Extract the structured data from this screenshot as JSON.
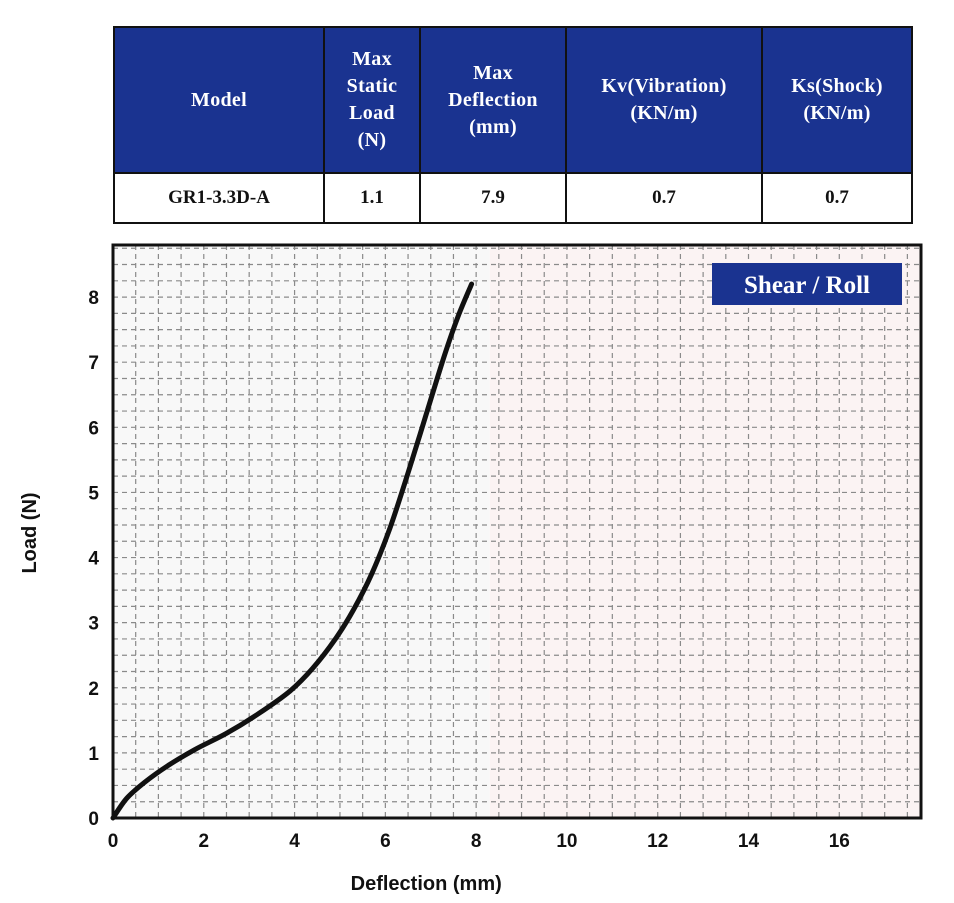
{
  "spec_table": {
    "headers": [
      [
        "Model"
      ],
      [
        "Max",
        "Static",
        "Load",
        "(N)"
      ],
      [
        "Max",
        "Deflection",
        "(mm)"
      ],
      [
        "Kv(Vibration)",
        "(KN/m)"
      ],
      [
        "Ks(Shock)",
        "(KN/m)"
      ]
    ],
    "row": {
      "model": "GR1-3.3D-A",
      "max_static_load": "1.1",
      "max_deflection": "7.9",
      "kv": "0.7",
      "ks": "0.7"
    }
  },
  "chart_data": {
    "type": "line",
    "title": "Shear / Roll",
    "xlabel": "Deflection (mm)",
    "ylabel": "Load (N)",
    "xlim": [
      0,
      17.8
    ],
    "ylim": [
      0,
      8.8
    ],
    "x_ticks": [
      0,
      2,
      4,
      6,
      8,
      10,
      12,
      14,
      16
    ],
    "y_ticks": [
      0,
      1,
      2,
      3,
      4,
      5,
      6,
      7,
      8
    ],
    "grid": true,
    "legend": "top-right badge",
    "series": [
      {
        "x": [
          0,
          0.3,
          0.7,
          1.2,
          1.8,
          2.5,
          3.2,
          3.9,
          4.4,
          4.9,
          5.3,
          5.7,
          6.1,
          6.5,
          6.9,
          7.3,
          7.6,
          7.9
        ],
        "y": [
          0,
          0.3,
          0.55,
          0.8,
          1.05,
          1.3,
          1.6,
          1.95,
          2.3,
          2.75,
          3.2,
          3.75,
          4.45,
          5.3,
          6.2,
          7.1,
          7.7,
          8.2
        ]
      }
    ],
    "colors": {
      "line": "#111111",
      "badge": "#1a3390",
      "grid": "#8a8a8a",
      "plot_bg_left": "#f8f8f8",
      "plot_bg_right": "#fbf3f3"
    }
  }
}
